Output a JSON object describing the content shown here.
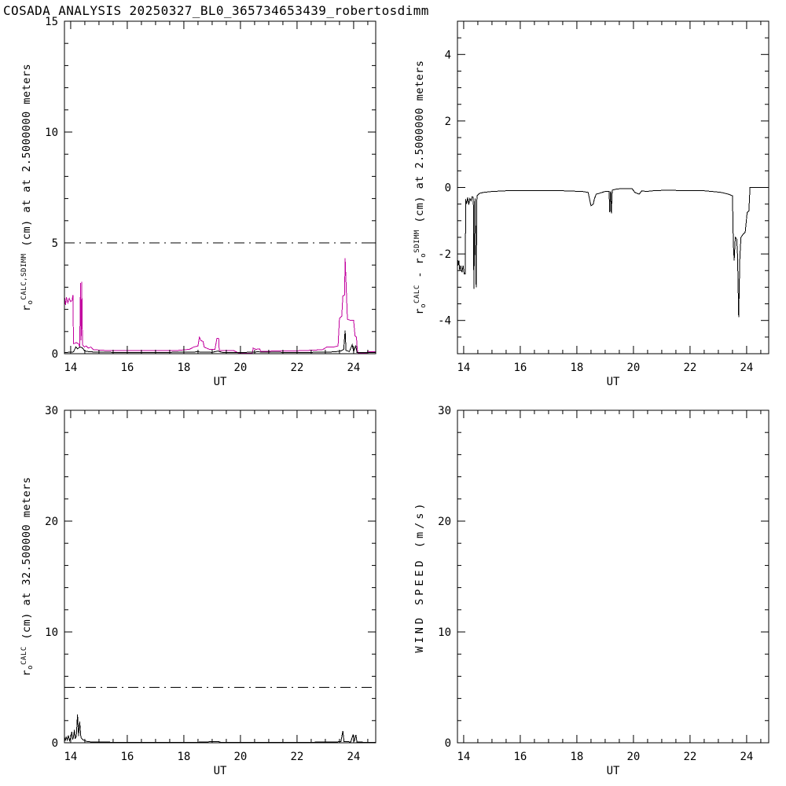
{
  "page": {
    "title": "COSADA ANALYSIS 20250327_BL0_365734653439_robertosdimm",
    "background": "#ffffff"
  },
  "colors": {
    "axis": "#000000",
    "magenta_series": "#c2009e",
    "black_series": "#000000"
  },
  "chart_data": [
    {
      "id": "r0-calc-sdimm-2.5m",
      "type": "line",
      "position": "top-left",
      "xlabel": "UT",
      "ylabel_segments": [
        {
          "t": "r"
        },
        {
          "t": "o",
          "pos": "sub"
        },
        {
          "t": "CALC,SDIMM",
          "pos": "sup"
        },
        {
          "t": " (cm) at  at 2.5000000 meters"
        }
      ],
      "xlim": [
        13.78,
        24.78
      ],
      "ylim": [
        0,
        15
      ],
      "xticks": [
        14,
        16,
        18,
        20,
        22,
        24
      ],
      "yticks": [
        0,
        5,
        10,
        15
      ],
      "x_minor_step": 0.5,
      "y_minor_step": 1,
      "dashed_hline": 5,
      "grid": false,
      "legend": null,
      "series": [
        {
          "name": "r0-sdimm",
          "color": "#c2009e",
          "points": [
            [
              13.78,
              2.6
            ],
            [
              13.82,
              2.2
            ],
            [
              13.85,
              2.55
            ],
            [
              13.9,
              2.3
            ],
            [
              13.95,
              2.5
            ],
            [
              14.0,
              2.35
            ],
            [
              14.05,
              2.4
            ],
            [
              14.08,
              2.65
            ],
            [
              14.1,
              0.45
            ],
            [
              14.2,
              0.5
            ],
            [
              14.28,
              0.45
            ],
            [
              14.32,
              0.3
            ],
            [
              14.35,
              3.2
            ],
            [
              14.37,
              0.6
            ],
            [
              14.39,
              3.25
            ],
            [
              14.42,
              0.4
            ],
            [
              14.48,
              0.3
            ],
            [
              14.55,
              0.35
            ],
            [
              14.62,
              0.25
            ],
            [
              14.72,
              0.3
            ],
            [
              14.8,
              0.18
            ],
            [
              15.2,
              0.15
            ],
            [
              16.0,
              0.15
            ],
            [
              17.0,
              0.15
            ],
            [
              17.8,
              0.15
            ],
            [
              18.2,
              0.2
            ],
            [
              18.35,
              0.3
            ],
            [
              18.5,
              0.35
            ],
            [
              18.55,
              0.75
            ],
            [
              18.6,
              0.6
            ],
            [
              18.68,
              0.55
            ],
            [
              18.72,
              0.3
            ],
            [
              18.8,
              0.25
            ],
            [
              18.9,
              0.2
            ],
            [
              19.1,
              0.2
            ],
            [
              19.17,
              0.7
            ],
            [
              19.23,
              0.7
            ],
            [
              19.25,
              0.15
            ],
            [
              19.5,
              0.15
            ],
            [
              19.75,
              0.15
            ],
            [
              19.95,
              0.02
            ],
            [
              20.42,
              0.02
            ],
            [
              20.45,
              0.25
            ],
            [
              20.55,
              0.2
            ],
            [
              20.68,
              0.22
            ],
            [
              20.72,
              0.1
            ],
            [
              21.2,
              0.12
            ],
            [
              21.8,
              0.12
            ],
            [
              22.4,
              0.15
            ],
            [
              22.9,
              0.18
            ],
            [
              23.05,
              0.3
            ],
            [
              23.3,
              0.3
            ],
            [
              23.45,
              0.35
            ],
            [
              23.5,
              1.6
            ],
            [
              23.58,
              1.7
            ],
            [
              23.62,
              2.6
            ],
            [
              23.68,
              2.65
            ],
            [
              23.7,
              4.3
            ],
            [
              23.74,
              2.9
            ],
            [
              23.78,
              1.55
            ],
            [
              23.9,
              1.5
            ],
            [
              24.0,
              1.5
            ],
            [
              24.05,
              0.8
            ],
            [
              24.1,
              0.75
            ],
            [
              24.12,
              0.35
            ],
            [
              24.15,
              0.02
            ],
            [
              24.45,
              0.02
            ],
            [
              24.5,
              0.1
            ],
            [
              24.78,
              0.08
            ]
          ]
        },
        {
          "name": "r0-calc",
          "color": "#000000",
          "points": [
            [
              13.78,
              0.05
            ],
            [
              14.1,
              0.08
            ],
            [
              14.18,
              0.3
            ],
            [
              14.25,
              0.22
            ],
            [
              14.32,
              0.3
            ],
            [
              14.4,
              0.28
            ],
            [
              14.5,
              0.12
            ],
            [
              14.7,
              0.08
            ],
            [
              15.5,
              0.06
            ],
            [
              16.5,
              0.06
            ],
            [
              17.5,
              0.06
            ],
            [
              18.5,
              0.08
            ],
            [
              19.0,
              0.06
            ],
            [
              19.2,
              0.12
            ],
            [
              19.35,
              0.06
            ],
            [
              20.0,
              0.05
            ],
            [
              20.6,
              0.08
            ],
            [
              21.5,
              0.06
            ],
            [
              22.5,
              0.06
            ],
            [
              23.3,
              0.08
            ],
            [
              23.55,
              0.12
            ],
            [
              23.65,
              0.2
            ],
            [
              23.7,
              1.05
            ],
            [
              23.73,
              0.15
            ],
            [
              23.85,
              0.1
            ],
            [
              23.95,
              0.4
            ],
            [
              24.0,
              0.1
            ],
            [
              24.08,
              0.35
            ],
            [
              24.12,
              0.05
            ],
            [
              24.5,
              0.05
            ],
            [
              24.78,
              0.05
            ]
          ]
        }
      ]
    },
    {
      "id": "r0-diff-2.5m",
      "type": "line",
      "position": "top-right",
      "xlabel": "UT",
      "ylabel_segments": [
        {
          "t": "r"
        },
        {
          "t": "o",
          "pos": "sub"
        },
        {
          "t": "CALC",
          "pos": "sup"
        },
        {
          "t": " - "
        },
        {
          "t": "r"
        },
        {
          "t": "o",
          "pos": "sub"
        },
        {
          "t": "SDIMM",
          "pos": "sup"
        },
        {
          "t": " (cm) at 2.5000000 meters"
        }
      ],
      "xlim": [
        13.78,
        24.78
      ],
      "ylim": [
        -5,
        5
      ],
      "xticks": [
        14,
        16,
        18,
        20,
        22,
        24
      ],
      "yticks": [
        -4,
        -2,
        0,
        2,
        4
      ],
      "x_minor_step": 0.5,
      "y_minor_step": 0.5,
      "dashed_hline": null,
      "grid": false,
      "legend": null,
      "series": [
        {
          "name": "r0-calc-minus-sdimm",
          "color": "#000000",
          "points": [
            [
              13.78,
              -2.1
            ],
            [
              13.8,
              -2.35
            ],
            [
              13.83,
              -2.2
            ],
            [
              13.86,
              -2.5
            ],
            [
              13.9,
              -2.35
            ],
            [
              13.94,
              -2.55
            ],
            [
              13.98,
              -2.35
            ],
            [
              14.02,
              -2.6
            ],
            [
              14.06,
              -2.6
            ],
            [
              14.07,
              -0.35
            ],
            [
              14.1,
              -0.5
            ],
            [
              14.14,
              -0.3
            ],
            [
              14.18,
              -0.52
            ],
            [
              14.22,
              -0.33
            ],
            [
              14.26,
              -0.4
            ],
            [
              14.3,
              -0.28
            ],
            [
              14.34,
              -0.3
            ],
            [
              14.36,
              -3.05
            ],
            [
              14.4,
              -0.33
            ],
            [
              14.44,
              -3.0
            ],
            [
              14.47,
              -0.25
            ],
            [
              14.55,
              -0.18
            ],
            [
              14.7,
              -0.15
            ],
            [
              15.0,
              -0.12
            ],
            [
              15.5,
              -0.1
            ],
            [
              16.5,
              -0.1
            ],
            [
              17.5,
              -0.1
            ],
            [
              18.2,
              -0.12
            ],
            [
              18.4,
              -0.15
            ],
            [
              18.5,
              -0.55
            ],
            [
              18.58,
              -0.5
            ],
            [
              18.62,
              -0.35
            ],
            [
              18.68,
              -0.2
            ],
            [
              18.78,
              -0.18
            ],
            [
              19.0,
              -0.12
            ],
            [
              19.14,
              -0.12
            ],
            [
              19.16,
              -0.75
            ],
            [
              19.19,
              -0.12
            ],
            [
              19.22,
              -0.78
            ],
            [
              19.25,
              -0.08
            ],
            [
              19.4,
              -0.05
            ],
            [
              19.6,
              -0.03
            ],
            [
              19.95,
              -0.03
            ],
            [
              20.05,
              -0.15
            ],
            [
              20.2,
              -0.2
            ],
            [
              20.3,
              -0.1
            ],
            [
              20.45,
              -0.12
            ],
            [
              20.7,
              -0.1
            ],
            [
              21.2,
              -0.08
            ],
            [
              21.9,
              -0.1
            ],
            [
              22.5,
              -0.1
            ],
            [
              22.9,
              -0.13
            ],
            [
              23.1,
              -0.15
            ],
            [
              23.35,
              -0.2
            ],
            [
              23.5,
              -0.25
            ],
            [
              23.53,
              -1.7
            ],
            [
              23.56,
              -2.2
            ],
            [
              23.6,
              -1.5
            ],
            [
              23.65,
              -1.55
            ],
            [
              23.68,
              -2.05
            ],
            [
              23.72,
              -3.9
            ],
            [
              23.76,
              -2.1
            ],
            [
              23.8,
              -1.5
            ],
            [
              23.88,
              -1.4
            ],
            [
              23.95,
              -1.35
            ],
            [
              24.02,
              -0.75
            ],
            [
              24.08,
              -0.7
            ],
            [
              24.12,
              0.0
            ],
            [
              24.78,
              0.0
            ]
          ]
        }
      ]
    },
    {
      "id": "r0-calc-32.5m",
      "type": "line",
      "position": "bottom-left",
      "xlabel": "UT",
      "ylabel_segments": [
        {
          "t": "r"
        },
        {
          "t": "o",
          "pos": "sub"
        },
        {
          "t": "CALC",
          "pos": "sup"
        },
        {
          "t": " (cm) at 32.500000 meters"
        }
      ],
      "xlim": [
        13.78,
        24.78
      ],
      "ylim": [
        0,
        30
      ],
      "xticks": [
        14,
        16,
        18,
        20,
        22,
        24
      ],
      "yticks": [
        0,
        10,
        20,
        30
      ],
      "x_minor_step": 0.5,
      "y_minor_step": 2,
      "dashed_hline": 5,
      "grid": false,
      "legend": null,
      "series": [
        {
          "name": "r0-calc-32.5m",
          "color": "#000000",
          "points": [
            [
              13.78,
              0.55
            ],
            [
              13.81,
              0.2
            ],
            [
              13.84,
              0.5
            ],
            [
              13.88,
              0.25
            ],
            [
              13.92,
              0.65
            ],
            [
              13.96,
              0.2
            ],
            [
              14.0,
              0.45
            ],
            [
              14.04,
              1.0
            ],
            [
              14.07,
              0.3
            ],
            [
              14.1,
              0.5
            ],
            [
              14.13,
              1.15
            ],
            [
              14.16,
              0.4
            ],
            [
              14.2,
              0.55
            ],
            [
              14.24,
              2.55
            ],
            [
              14.28,
              0.6
            ],
            [
              14.32,
              1.9
            ],
            [
              14.36,
              0.5
            ],
            [
              14.4,
              0.35
            ],
            [
              14.48,
              0.2
            ],
            [
              14.6,
              0.1
            ],
            [
              14.8,
              0.07
            ],
            [
              15.5,
              0.05
            ],
            [
              16.5,
              0.05
            ],
            [
              17.5,
              0.05
            ],
            [
              18.5,
              0.05
            ],
            [
              19.2,
              0.12
            ],
            [
              19.3,
              0.05
            ],
            [
              20.5,
              0.05
            ],
            [
              21.5,
              0.05
            ],
            [
              22.5,
              0.05
            ],
            [
              23.3,
              0.07
            ],
            [
              23.55,
              0.1
            ],
            [
              23.62,
              1.05
            ],
            [
              23.66,
              0.12
            ],
            [
              23.9,
              0.08
            ],
            [
              23.98,
              0.75
            ],
            [
              24.02,
              0.1
            ],
            [
              24.08,
              0.7
            ],
            [
              24.12,
              0.06
            ],
            [
              24.5,
              0.05
            ],
            [
              24.78,
              0.05
            ]
          ]
        }
      ]
    },
    {
      "id": "wind-speed",
      "type": "line",
      "position": "bottom-right",
      "xlabel": "UT",
      "ylabel_segments": [
        {
          "t": "WIND SPEED (m/s)"
        }
      ],
      "xlim": [
        13.78,
        24.78
      ],
      "ylim": [
        0,
        30
      ],
      "xticks": [
        14,
        16,
        18,
        20,
        22,
        24
      ],
      "yticks": [
        0,
        10,
        20,
        30
      ],
      "x_minor_step": 0.5,
      "y_minor_step": 2,
      "dashed_hline": null,
      "grid": false,
      "legend": null,
      "series": []
    }
  ]
}
